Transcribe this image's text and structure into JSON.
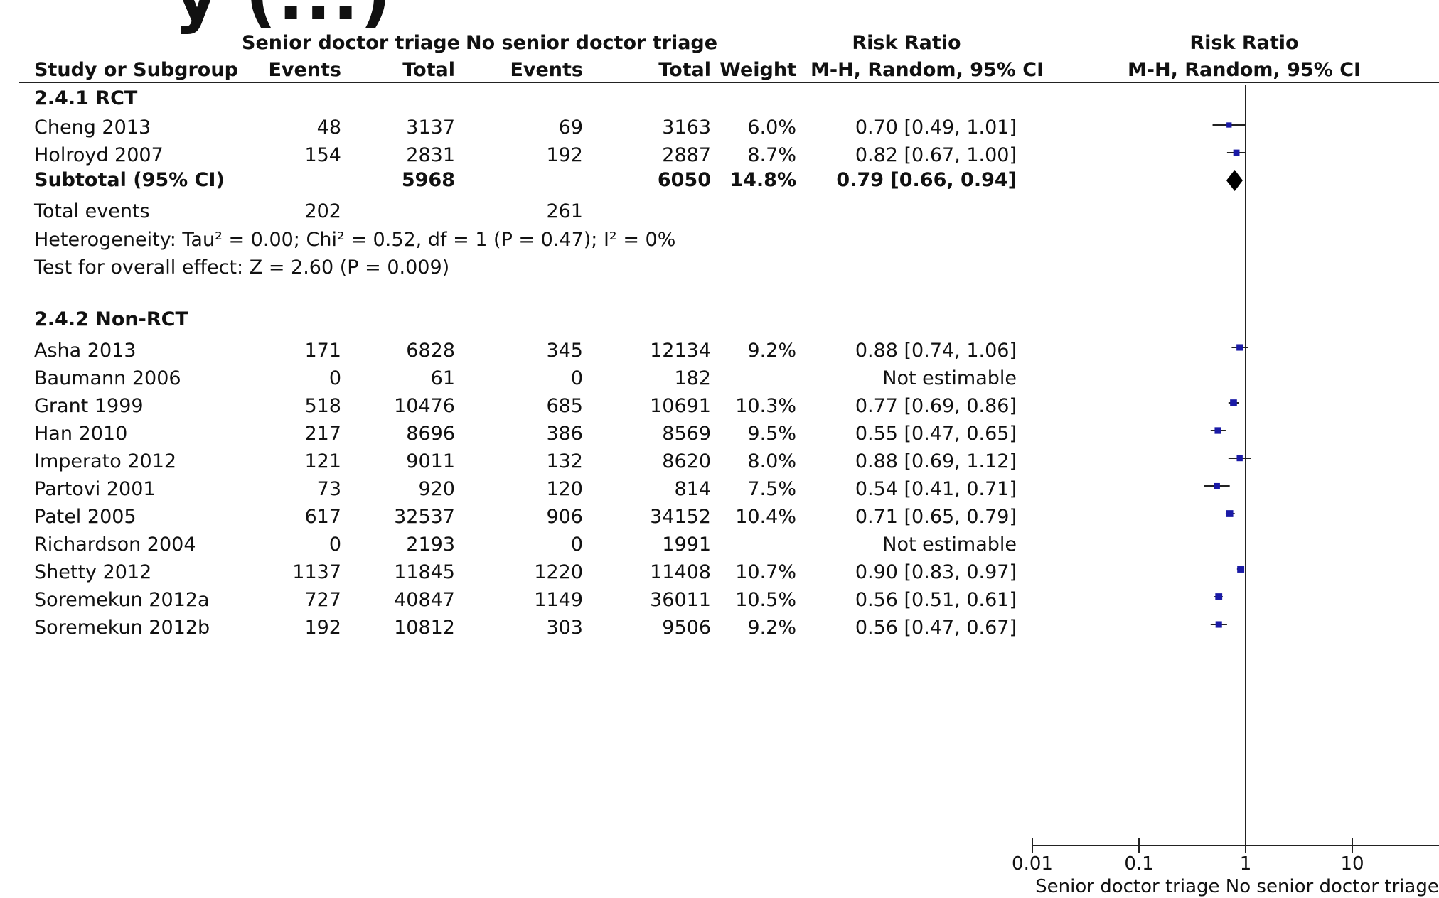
{
  "top_heading_fragment": "y (...)",
  "header": {
    "group1": "Senior doctor triage",
    "group2": "No senior doctor triage",
    "rr_col": "Risk Ratio",
    "rr_method": "M-H, Random, 95% CI",
    "plot_title": "Risk Ratio",
    "plot_method": "M-H, Random, 95% CI",
    "study": "Study or Subgroup",
    "events1": "Events",
    "total1": "Total",
    "events2": "Events",
    "total2": "Total",
    "weight": "Weight"
  },
  "subgroup1": {
    "title": "2.4.1 RCT",
    "rows": [
      {
        "study": "Cheng 2013",
        "e1": "48",
        "t1": "3137",
        "e2": "69",
        "t2": "3163",
        "weight": "6.0%",
        "ci": "0.70 [0.49, 1.01]"
      },
      {
        "study": "Holroyd 2007",
        "e1": "154",
        "t1": "2831",
        "e2": "192",
        "t2": "2887",
        "weight": "8.7%",
        "ci": "0.82 [0.67, 1.00]"
      }
    ],
    "subtotal": {
      "label": "Subtotal (95% CI)",
      "t1": "5968",
      "t2": "6050",
      "weight": "14.8%",
      "ci": "0.79 [0.66, 0.94]"
    },
    "total_events": {
      "label": "Total events",
      "e1": "202",
      "e2": "261"
    },
    "heterogeneity": "Heterogeneity: Tau² = 0.00; Chi² = 0.52, df = 1 (P = 0.47); I² = 0%",
    "overall": "Test for overall effect: Z = 2.60 (P = 0.009)"
  },
  "subgroup2": {
    "title": "2.4.2 Non-RCT",
    "rows": [
      {
        "study": "Asha 2013",
        "e1": "171",
        "t1": "6828",
        "e2": "345",
        "t2": "12134",
        "weight": "9.2%",
        "ci": "0.88 [0.74, 1.06]"
      },
      {
        "study": "Baumann 2006",
        "e1": "0",
        "t1": "61",
        "e2": "0",
        "t2": "182",
        "weight": "",
        "ci": "Not estimable"
      },
      {
        "study": "Grant 1999",
        "e1": "518",
        "t1": "10476",
        "e2": "685",
        "t2": "10691",
        "weight": "10.3%",
        "ci": "0.77 [0.69, 0.86]"
      },
      {
        "study": "Han 2010",
        "e1": "217",
        "t1": "8696",
        "e2": "386",
        "t2": "8569",
        "weight": "9.5%",
        "ci": "0.55 [0.47, 0.65]"
      },
      {
        "study": "Imperato 2012",
        "e1": "121",
        "t1": "9011",
        "e2": "132",
        "t2": "8620",
        "weight": "8.0%",
        "ci": "0.88 [0.69, 1.12]"
      },
      {
        "study": "Partovi 2001",
        "e1": "73",
        "t1": "920",
        "e2": "120",
        "t2": "814",
        "weight": "7.5%",
        "ci": "0.54 [0.41, 0.71]"
      },
      {
        "study": "Patel 2005",
        "e1": "617",
        "t1": "32537",
        "e2": "906",
        "t2": "34152",
        "weight": "10.4%",
        "ci": "0.71 [0.65, 0.79]"
      },
      {
        "study": "Richardson 2004",
        "e1": "0",
        "t1": "2193",
        "e2": "0",
        "t2": "1991",
        "weight": "",
        "ci": "Not estimable"
      },
      {
        "study": "Shetty 2012",
        "e1": "1137",
        "t1": "11845",
        "e2": "1220",
        "t2": "11408",
        "weight": "10.7%",
        "ci": "0.90 [0.83, 0.97]"
      },
      {
        "study": "Soremekun 2012a",
        "e1": "727",
        "t1": "40847",
        "e2": "1149",
        "t2": "36011",
        "weight": "10.5%",
        "ci": "0.56 [0.51, 0.61]"
      },
      {
        "study": "Soremekun 2012b",
        "e1": "192",
        "t1": "10812",
        "e2": "303",
        "t2": "9506",
        "weight": "9.2%",
        "ci": "0.56 [0.47, 0.67]"
      }
    ]
  },
  "axis_footer": "Senior doctor triage   No senior doctor triage",
  "colors": {
    "marker": "#1a1aa6",
    "line": "#222222",
    "diamond": "#000000"
  },
  "chart_data": {
    "type": "forest",
    "x_scale": "log",
    "xlim": [
      0.01,
      100
    ],
    "x_ticks": [
      "0.01",
      "0.1",
      "1",
      "10",
      "100"
    ],
    "reference_line": 1,
    "studies": [
      {
        "name": "Cheng 2013",
        "rr": 0.7,
        "lo": 0.49,
        "hi": 1.01,
        "weight": 6.0
      },
      {
        "name": "Holroyd 2007",
        "rr": 0.82,
        "lo": 0.67,
        "hi": 1.0,
        "weight": 8.7
      },
      {
        "name": "Subtotal (95% CI)",
        "rr": 0.79,
        "lo": 0.66,
        "hi": 0.94,
        "weight": 14.8,
        "diamond": true
      },
      {
        "name": "Asha 2013",
        "rr": 0.88,
        "lo": 0.74,
        "hi": 1.06,
        "weight": 9.2
      },
      {
        "name": "Grant 1999",
        "rr": 0.77,
        "lo": 0.69,
        "hi": 0.86,
        "weight": 10.3
      },
      {
        "name": "Han 2010",
        "rr": 0.55,
        "lo": 0.47,
        "hi": 0.65,
        "weight": 9.5
      },
      {
        "name": "Imperato 2012",
        "rr": 0.88,
        "lo": 0.69,
        "hi": 1.12,
        "weight": 8.0
      },
      {
        "name": "Partovi 2001",
        "rr": 0.54,
        "lo": 0.41,
        "hi": 0.71,
        "weight": 7.5
      },
      {
        "name": "Patel 2005",
        "rr": 0.71,
        "lo": 0.65,
        "hi": 0.79,
        "weight": 10.4
      },
      {
        "name": "Shetty 2012",
        "rr": 0.9,
        "lo": 0.83,
        "hi": 0.97,
        "weight": 10.7
      },
      {
        "name": "Soremekun 2012a",
        "rr": 0.56,
        "lo": 0.51,
        "hi": 0.61,
        "weight": 10.5
      },
      {
        "name": "Soremekun 2012b",
        "rr": 0.56,
        "lo": 0.47,
        "hi": 0.67,
        "weight": 9.2
      }
    ]
  }
}
